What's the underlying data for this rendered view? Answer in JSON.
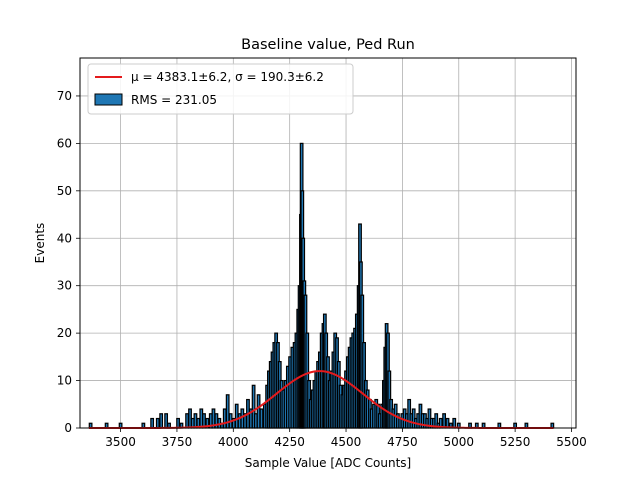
{
  "chart_data": {
    "type": "bar",
    "title": "Baseline value, Ped Run",
    "xlabel": "Sample Value [ADC Counts]",
    "ylabel": "Events",
    "xlim": [
      3320,
      5520
    ],
    "ylim": [
      0,
      78
    ],
    "xticks": [
      3500,
      3750,
      4000,
      4250,
      4500,
      4750,
      5000,
      5250,
      5500
    ],
    "yticks": [
      0,
      10,
      20,
      30,
      40,
      50,
      60,
      70
    ],
    "grid": true,
    "legend_position": "top-left",
    "histogram": {
      "name": "RMS = 231.05",
      "color": "#1f77b4",
      "edge_color": "#000000",
      "bins": [
        [
          3367,
          1
        ],
        [
          3438,
          1
        ],
        [
          3500,
          1
        ],
        [
          3601,
          1
        ],
        [
          3640,
          2
        ],
        [
          3665,
          2
        ],
        [
          3680,
          3
        ],
        [
          3702,
          3
        ],
        [
          3715,
          1
        ],
        [
          3755,
          2
        ],
        [
          3770,
          1
        ],
        [
          3795,
          3
        ],
        [
          3808,
          4
        ],
        [
          3820,
          2
        ],
        [
          3832,
          3
        ],
        [
          3845,
          2
        ],
        [
          3858,
          4
        ],
        [
          3870,
          3
        ],
        [
          3885,
          2
        ],
        [
          3900,
          3
        ],
        [
          3912,
          4
        ],
        [
          3925,
          3
        ],
        [
          3938,
          2
        ],
        [
          3950,
          1
        ],
        [
          3962,
          4
        ],
        [
          3975,
          7
        ],
        [
          3988,
          3
        ],
        [
          4002,
          2
        ],
        [
          4015,
          5
        ],
        [
          4028,
          3
        ],
        [
          4040,
          4
        ],
        [
          4052,
          3
        ],
        [
          4065,
          6
        ],
        [
          4078,
          4
        ],
        [
          4090,
          9
        ],
        [
          4100,
          3
        ],
        [
          4112,
          7
        ],
        [
          4125,
          4
        ],
        [
          4140,
          5
        ],
        [
          4150,
          9
        ],
        [
          4158,
          12
        ],
        [
          4166,
          14
        ],
        [
          4174,
          16
        ],
        [
          4182,
          18
        ],
        [
          4190,
          20
        ],
        [
          4198,
          18
        ],
        [
          4206,
          14
        ],
        [
          4214,
          10
        ],
        [
          4222,
          8
        ],
        [
          4232,
          10
        ],
        [
          4242,
          13
        ],
        [
          4252,
          15
        ],
        [
          4262,
          17
        ],
        [
          4272,
          18
        ],
        [
          4280,
          20
        ],
        [
          4288,
          25
        ],
        [
          4294,
          30
        ],
        [
          4300,
          45
        ],
        [
          4303,
          60
        ],
        [
          4306,
          50
        ],
        [
          4310,
          40
        ],
        [
          4315,
          31
        ],
        [
          4320,
          28
        ],
        [
          4328,
          20
        ],
        [
          4336,
          10
        ],
        [
          4344,
          6
        ],
        [
          4352,
          8
        ],
        [
          4360,
          10
        ],
        [
          4368,
          12
        ],
        [
          4376,
          14
        ],
        [
          4384,
          16
        ],
        [
          4392,
          20
        ],
        [
          4400,
          22
        ],
        [
          4406,
          24
        ],
        [
          4412,
          20
        ],
        [
          4420,
          15
        ],
        [
          4428,
          10
        ],
        [
          4436,
          12
        ],
        [
          4444,
          16
        ],
        [
          4452,
          20
        ],
        [
          4460,
          19
        ],
        [
          4468,
          14
        ],
        [
          4476,
          9
        ],
        [
          4484,
          7
        ],
        [
          4492,
          9
        ],
        [
          4500,
          12
        ],
        [
          4508,
          15
        ],
        [
          4516,
          17
        ],
        [
          4524,
          19
        ],
        [
          4532,
          20
        ],
        [
          4540,
          21
        ],
        [
          4548,
          24
        ],
        [
          4556,
          30
        ],
        [
          4562,
          43
        ],
        [
          4566,
          35
        ],
        [
          4572,
          28
        ],
        [
          4580,
          18
        ],
        [
          4588,
          10
        ],
        [
          4596,
          8
        ],
        [
          4606,
          6
        ],
        [
          4614,
          4
        ],
        [
          4624,
          5
        ],
        [
          4634,
          6
        ],
        [
          4642,
          5
        ],
        [
          4650,
          3
        ],
        [
          4660,
          5
        ],
        [
          4668,
          10
        ],
        [
          4674,
          17
        ],
        [
          4680,
          22
        ],
        [
          4686,
          20
        ],
        [
          4692,
          12
        ],
        [
          4700,
          6
        ],
        [
          4710,
          4
        ],
        [
          4720,
          5
        ],
        [
          4730,
          3
        ],
        [
          4740,
          2
        ],
        [
          4750,
          3
        ],
        [
          4760,
          4
        ],
        [
          4770,
          3
        ],
        [
          4780,
          6
        ],
        [
          4790,
          3
        ],
        [
          4800,
          4
        ],
        [
          4810,
          2
        ],
        [
          4820,
          3
        ],
        [
          4830,
          5
        ],
        [
          4840,
          3
        ],
        [
          4850,
          3
        ],
        [
          4860,
          2
        ],
        [
          4870,
          4
        ],
        [
          4880,
          2
        ],
        [
          4890,
          2
        ],
        [
          4900,
          3
        ],
        [
          4910,
          1
        ],
        [
          4920,
          2
        ],
        [
          4935,
          3
        ],
        [
          4950,
          2
        ],
        [
          4965,
          1
        ],
        [
          4980,
          2
        ],
        [
          5000,
          1
        ],
        [
          5050,
          1
        ],
        [
          5080,
          1
        ],
        [
          5110,
          1
        ],
        [
          5180,
          1
        ],
        [
          5250,
          1
        ],
        [
          5300,
          1
        ],
        [
          5415,
          1
        ]
      ]
    },
    "fit": {
      "name_mu": "μ = 4383.1±6.2",
      "name_sigma": "σ = 190.3±6.2",
      "type": "gaussian",
      "mu": 4383.1,
      "sigma": 190.3,
      "amplitude": 12,
      "x_range": [
        3360,
        5420
      ],
      "color": "#e41a1c"
    }
  }
}
